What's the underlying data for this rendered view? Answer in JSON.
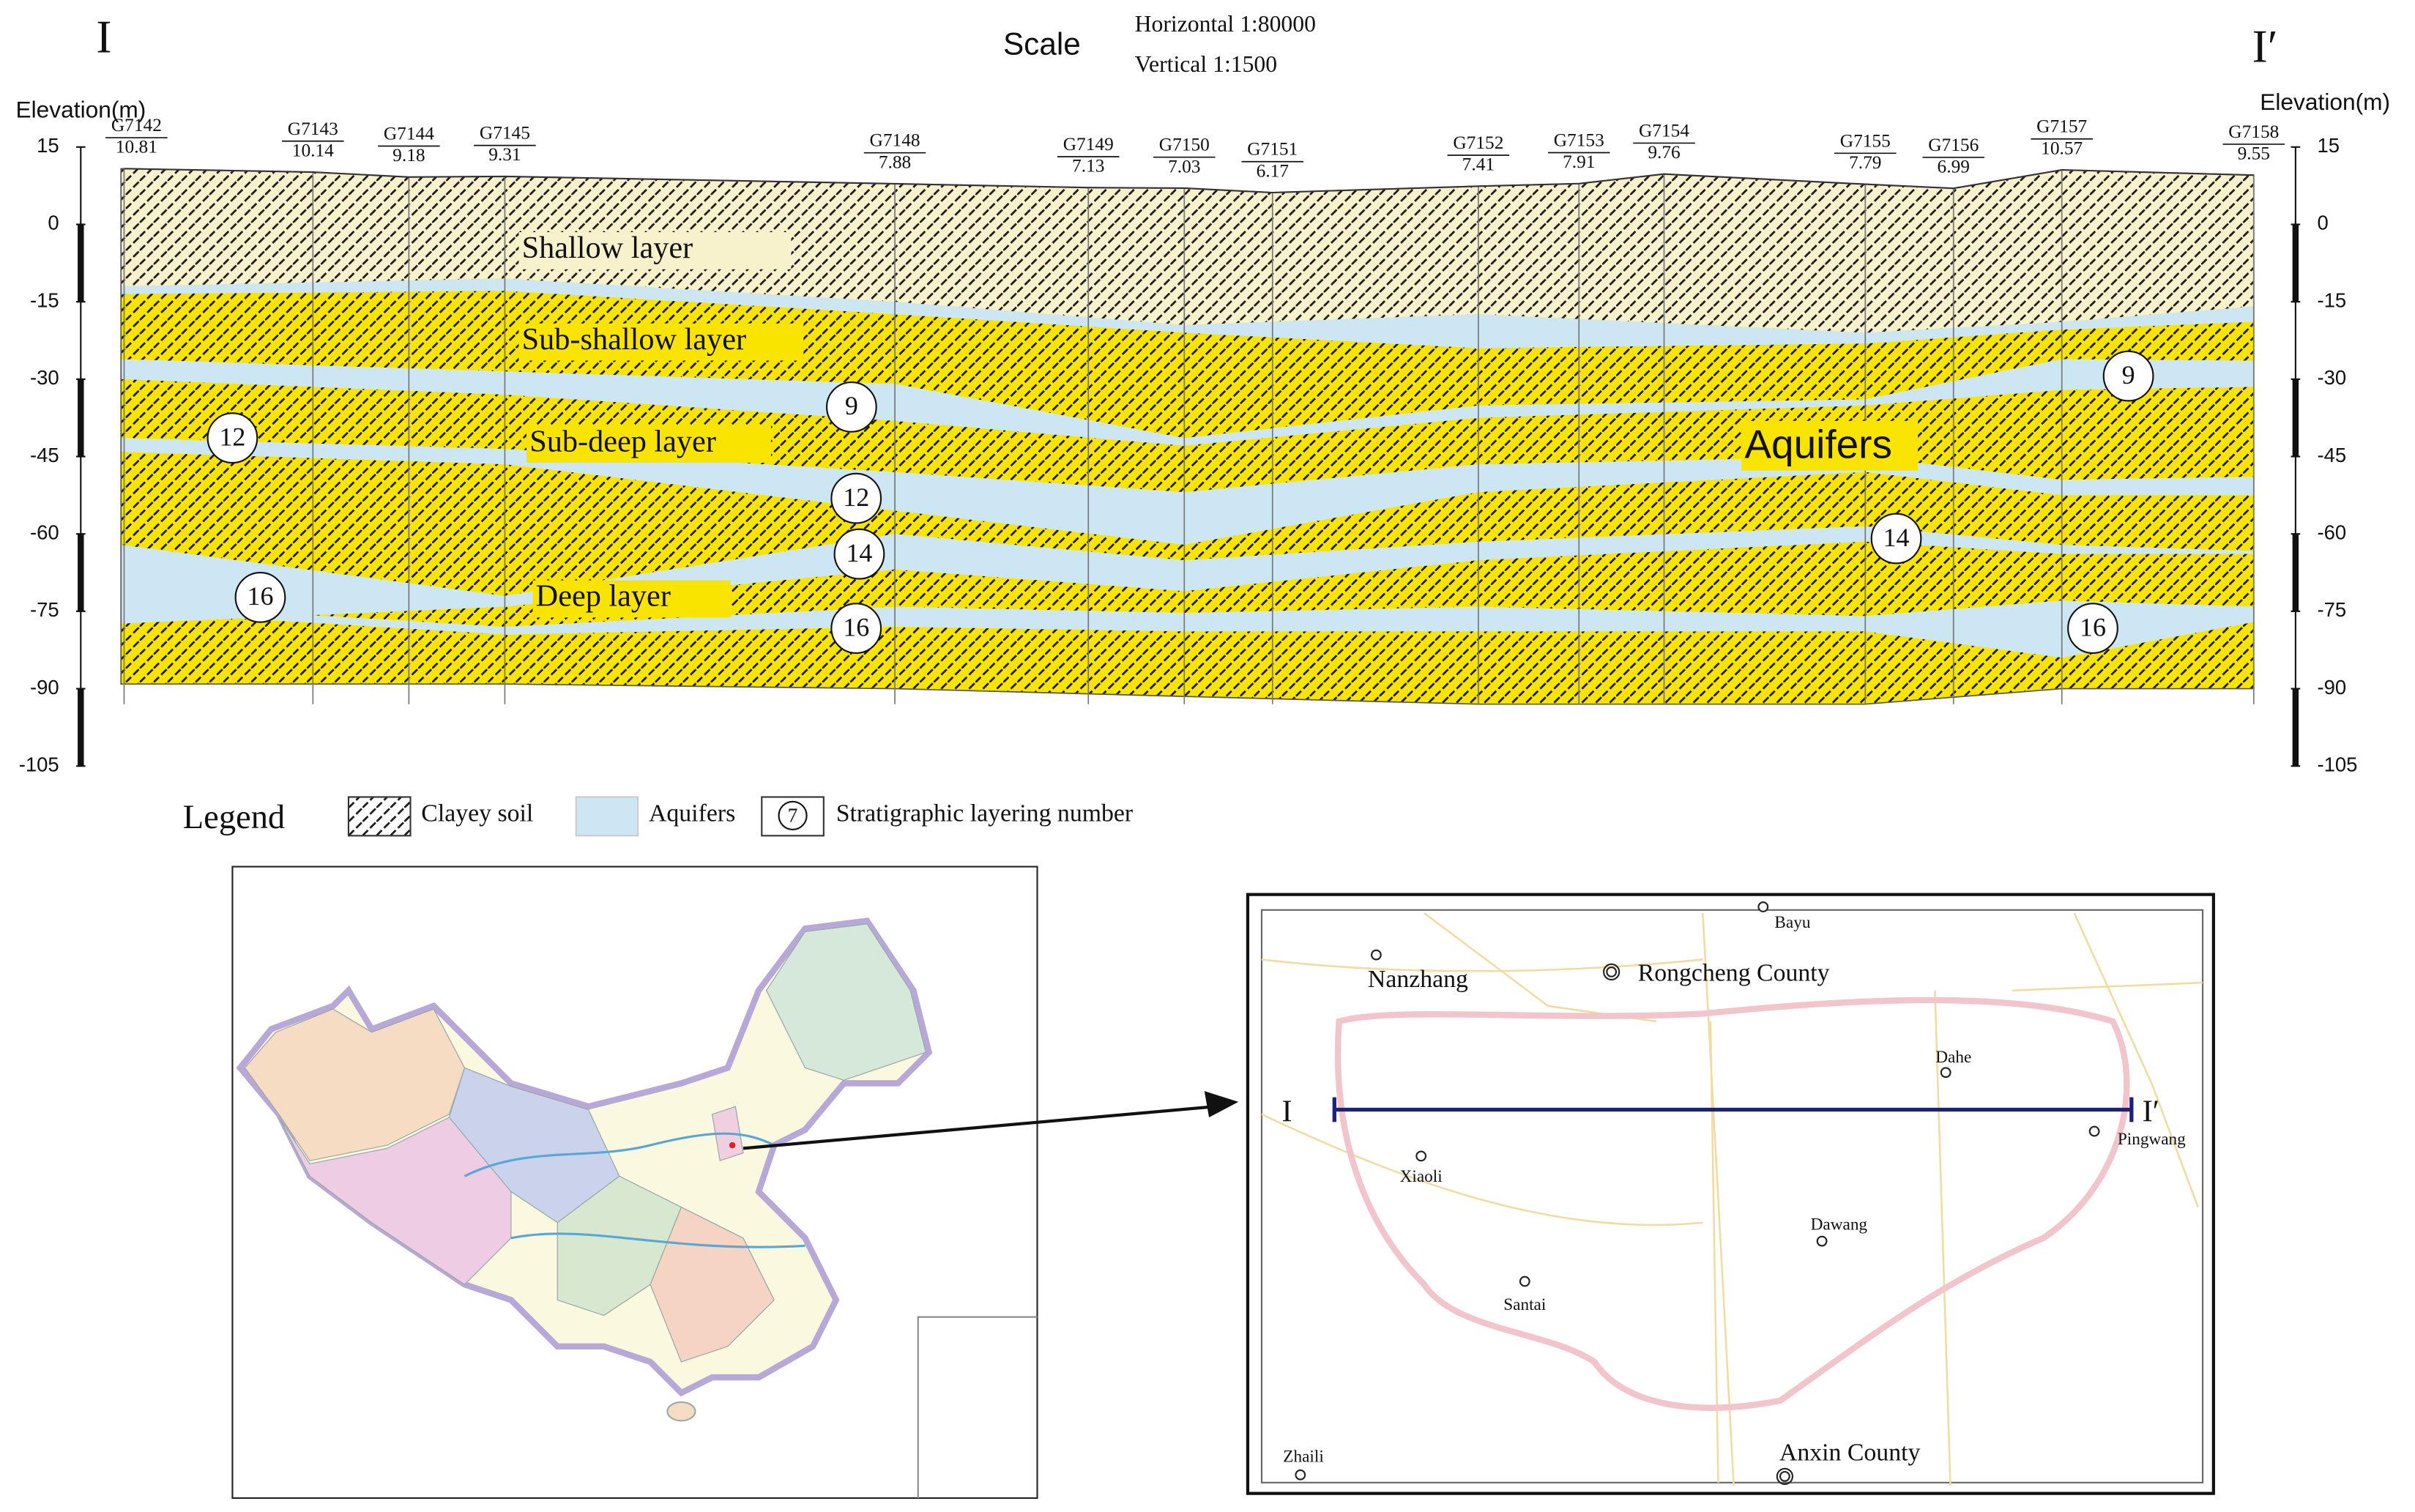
{
  "section": {
    "start_label": "I",
    "end_label": "I′",
    "scale_label": "Scale",
    "horizontal": "Horizontal 1:80000",
    "vertical": "Vertical 1:1500",
    "axis_title_left": "Elevation(m)",
    "axis_title_right": "Elevation(m)",
    "elevation_ticks": [
      15,
      0,
      -15,
      -30,
      -45,
      -60,
      -75,
      -90,
      -105
    ],
    "wells": [
      {
        "name": "G7142",
        "elevation": 10.81
      },
      {
        "name": "G7143",
        "elevation": 10.14
      },
      {
        "name": "G7144",
        "elevation": 9.18
      },
      {
        "name": "G7145",
        "elevation": 9.31
      },
      {
        "name": "G7148",
        "elevation": 7.88
      },
      {
        "name": "G7149",
        "elevation": 7.13
      },
      {
        "name": "G7150",
        "elevation": 7.03
      },
      {
        "name": "G7151",
        "elevation": 6.17
      },
      {
        "name": "G7152",
        "elevation": 7.41
      },
      {
        "name": "G7153",
        "elevation": 7.91
      },
      {
        "name": "G7154",
        "elevation": 9.76
      },
      {
        "name": "G7155",
        "elevation": 7.79
      },
      {
        "name": "G7156",
        "elevation": 6.99
      },
      {
        "name": "G7157",
        "elevation": 10.57
      },
      {
        "name": "G7158",
        "elevation": 9.55
      }
    ],
    "layers": [
      "Shallow layer",
      "Sub-shallow layer",
      "Sub-deep layer",
      "Deep layer"
    ],
    "aquifer_label": "Aquifers",
    "layer_numbers": [
      9,
      9,
      12,
      12,
      14,
      14,
      16,
      16,
      16
    ]
  },
  "legend": {
    "title": "Legend",
    "items": [
      "Clayey soil",
      "Aquifers",
      "Stratigraphic layering number"
    ],
    "symbol": 7
  },
  "map": {
    "places": [
      "Bayu",
      "Nanzhang",
      "Rongcheng County",
      "Dahe",
      "Pingwang",
      "Xiaoli",
      "Dawang",
      "Santai",
      "Zhaili",
      "Anxin County"
    ],
    "section_start": "I",
    "section_end": "I′"
  }
}
